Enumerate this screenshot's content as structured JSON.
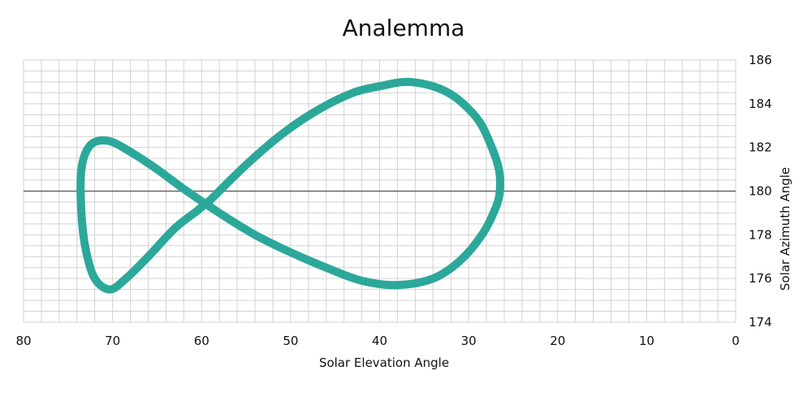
{
  "chart_data": {
    "type": "line",
    "title": "Analemma",
    "xlabel": "Solar Elevation Angle",
    "ylabel": "Solar Azimuth Angle",
    "xlim": [
      80,
      0
    ],
    "ylim": [
      174,
      186
    ],
    "x_ticks": [
      80,
      70,
      60,
      50,
      40,
      30,
      20,
      10,
      0
    ],
    "y_ticks": [
      174,
      176,
      178,
      180,
      182,
      184,
      186
    ],
    "x_minor_step": 2,
    "y_minor_step": 0.5,
    "grid": true,
    "reference_line_y": 180,
    "line_color": "#2ba89a",
    "series": [
      {
        "closed": true,
        "x": [
          59.0,
          55.0,
          51.0,
          47.0,
          43.0,
          40.0,
          37.0,
          34.0,
          31.5,
          29.0,
          27.6,
          26.6,
          26.5,
          27.0,
          28.5,
          31.0,
          34.0,
          38.0,
          42.0,
          46.0,
          50.0,
          54.0,
          58.0,
          62.0,
          65.0,
          68.0,
          70.5,
          72.5,
          73.5,
          73.5,
          73.0,
          72.0,
          70.3,
          68.5,
          66.0,
          63.0,
          60.5,
          59.0
        ],
        "y": [
          179.6,
          181.2,
          182.6,
          183.7,
          184.5,
          184.8,
          185.0,
          184.8,
          184.3,
          183.3,
          182.2,
          181.0,
          180.0,
          179.2,
          178.0,
          176.8,
          176.0,
          175.7,
          175.9,
          176.5,
          177.2,
          178.0,
          179.0,
          180.1,
          181.0,
          181.8,
          182.3,
          182.1,
          181.0,
          179.0,
          177.3,
          176.0,
          175.5,
          176.0,
          177.0,
          178.3,
          179.1,
          179.6
        ]
      }
    ]
  }
}
